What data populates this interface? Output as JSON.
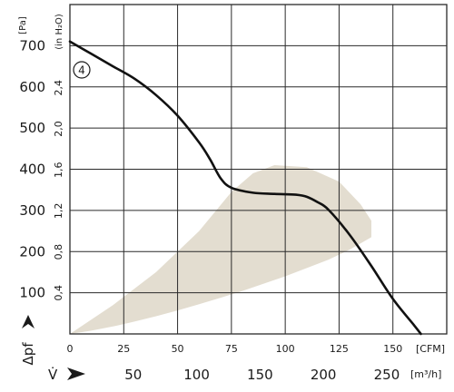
{
  "chart_data": {
    "type": "line",
    "title": "",
    "colors": {
      "curve": "#111111",
      "operating_zone": "#e3ddd0",
      "grid": "#2a2a2a"
    },
    "grid": true,
    "y_pa": {
      "ylim": [
        0,
        800
      ],
      "ticks": [
        "100",
        "200",
        "300",
        "400",
        "500",
        "600",
        "700"
      ],
      "unit": "[Pa]",
      "symbol": "Δpf"
    },
    "y_inh2o": {
      "ticks": [
        "0,4",
        "0,8",
        "1,2",
        "1,6",
        "2,0",
        "2,4"
      ],
      "tick_values": [
        0.4,
        0.8,
        1.2,
        1.6,
        2.0,
        2.4
      ],
      "unit": "(in H₂O)"
    },
    "x_cfm": {
      "xlim": [
        0,
        175
      ],
      "ticks": [
        "0",
        "25",
        "50",
        "75",
        "100",
        "125",
        "150"
      ],
      "tick_values": [
        0,
        25,
        50,
        75,
        100,
        125,
        150
      ],
      "unit": "[CFM]"
    },
    "x_m3h": {
      "ticks": [
        "50",
        "100",
        "150",
        "200",
        "250"
      ],
      "tick_values": [
        50,
        100,
        150,
        200,
        250
      ],
      "unit": "[m³/h]",
      "symbol": "V̇"
    },
    "series": [
      {
        "name": "4",
        "x": [
          0,
          10,
          20,
          30,
          40,
          50,
          60,
          65,
          70,
          75,
          85,
          95,
          105,
          110,
          115,
          120,
          130,
          140,
          150,
          160,
          163
        ],
        "y": [
          710,
          680,
          650,
          620,
          580,
          530,
          465,
          425,
          378,
          355,
          343,
          340,
          338,
          333,
          320,
          302,
          240,
          165,
          85,
          20,
          0
        ]
      }
    ],
    "operating_zone": {
      "upper_x": [
        0,
        20,
        40,
        60,
        75,
        85,
        95,
        110,
        125,
        135,
        140
      ],
      "upper_y": [
        0,
        70,
        150,
        250,
        345,
        390,
        410,
        405,
        370,
        315,
        275
      ],
      "lower_x": [
        140,
        130,
        120,
        110,
        100,
        90,
        80,
        70,
        60,
        50,
        40,
        30,
        20,
        10,
        0
      ],
      "lower_y": [
        235,
        205,
        180,
        160,
        140,
        122,
        104,
        88,
        72,
        57,
        43,
        30,
        18,
        8,
        0
      ]
    }
  }
}
